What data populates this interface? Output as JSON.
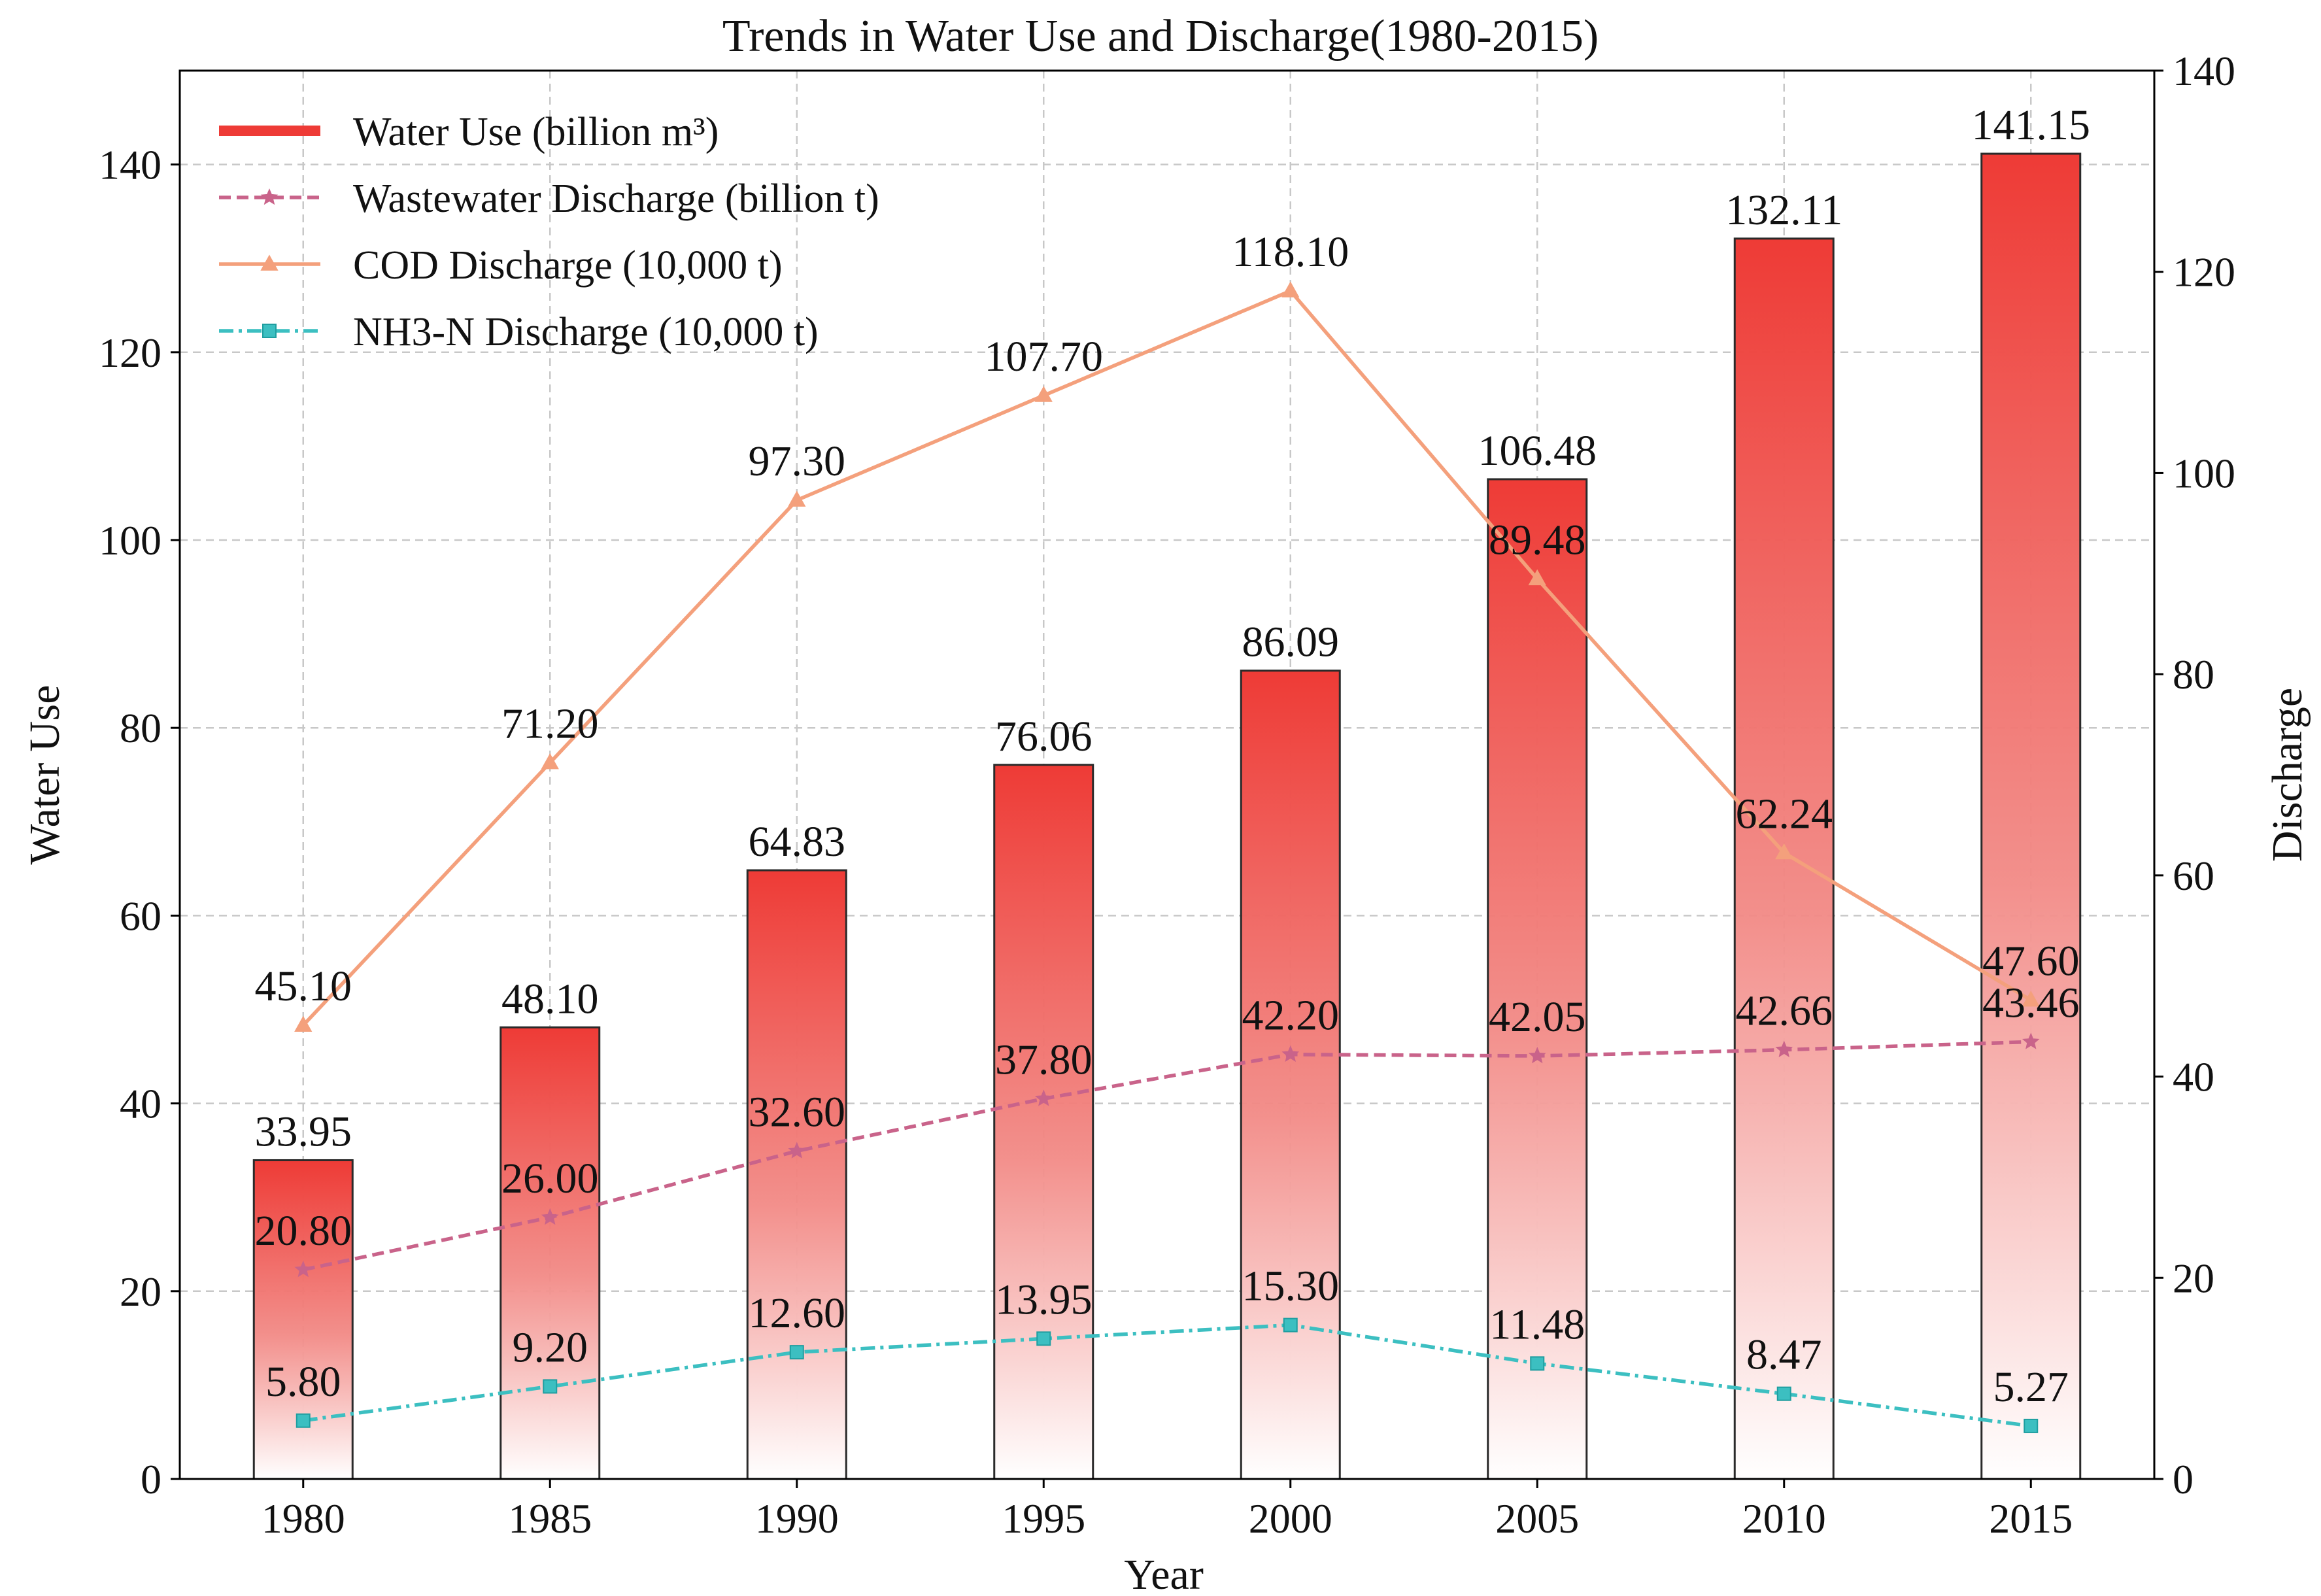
{
  "chart_data": {
    "type": "bar+line",
    "title": "Trends in Water Use and Discharge(1980-2015)",
    "xlabel": "Year",
    "ylabel": "Water Use",
    "y2label": "Discharge",
    "categories": [
      "1980",
      "1985",
      "1990",
      "1995",
      "2000",
      "2005",
      "2010",
      "2015"
    ],
    "ylim": [
      0,
      150
    ],
    "yticks": [
      0,
      20,
      40,
      60,
      80,
      100,
      120,
      140
    ],
    "y2lim": [
      0,
      140
    ],
    "y2ticks": [
      0,
      20,
      40,
      60,
      80,
      100,
      120,
      140
    ],
    "grid": true,
    "legend_position": "top-left",
    "bars": {
      "name": "Water Use (billion m³)",
      "axis": "left",
      "values": [
        33.95,
        48.1,
        64.83,
        76.06,
        86.09,
        106.48,
        132.11,
        141.15
      ],
      "labels": [
        "33.95",
        "48.10",
        "64.83",
        "76.06",
        "86.09",
        "106.48",
        "132.11",
        "141.15"
      ],
      "color": "#ee3b36"
    },
    "series": [
      {
        "name": "Wastewater Discharge (billion t)",
        "axis": "right",
        "values": [
          20.8,
          26.0,
          32.6,
          37.8,
          42.2,
          42.05,
          42.66,
          43.46
        ],
        "labels": [
          "20.80",
          "26.00",
          "32.60",
          "37.80",
          "42.20",
          "42.05",
          "42.66",
          "43.46"
        ],
        "color": "#c9638a",
        "dash": "dashed",
        "marker": "star"
      },
      {
        "name": "COD Discharge (10,000 t)",
        "axis": "right",
        "values": [
          45.1,
          71.2,
          97.3,
          107.7,
          118.1,
          89.48,
          62.24,
          47.6
        ],
        "labels": [
          "45.10",
          "71.20",
          "97.30",
          "107.70",
          "118.10",
          "89.48",
          "62.24",
          "47.60"
        ],
        "color": "#f4a07c",
        "dash": "solid",
        "marker": "triangle"
      },
      {
        "name": "NH3-N Discharge (10,000 t)",
        "axis": "right",
        "values": [
          5.8,
          9.2,
          12.6,
          13.95,
          15.3,
          11.48,
          8.47,
          5.27
        ],
        "labels": [
          "5.80",
          "9.20",
          "12.60",
          "13.95",
          "15.30",
          "11.48",
          "8.47",
          "5.27"
        ],
        "color": "#3cbfc1",
        "dash": "dashdot",
        "marker": "square"
      }
    ]
  }
}
